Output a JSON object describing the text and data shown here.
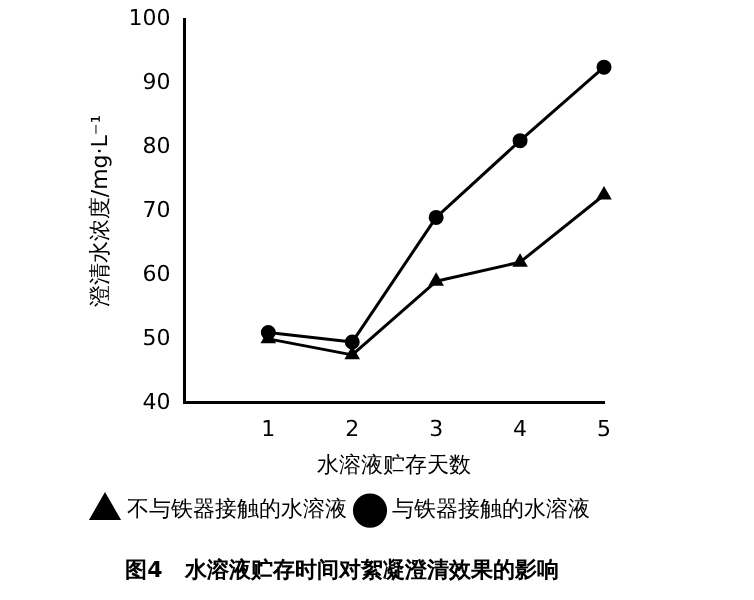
{
  "chart_data": {
    "type": "line",
    "title": "图4　水溶液贮存时间对絮凝澄清效果的影响",
    "xlabel": "水溶液贮存天数",
    "ylabel": "澄清水浓度/mg·L⁻¹",
    "x": [
      1,
      2,
      3,
      4,
      5
    ],
    "series": [
      {
        "name": "与铁器接触的水溶液",
        "color": "#000000",
        "marker": "circle",
        "values": [
          51,
          49.5,
          69,
          81,
          92.5
        ]
      },
      {
        "name": "不与铁器接触的水溶液",
        "color": "#000000",
        "marker": "triangle",
        "values": [
          50,
          47.5,
          59,
          62,
          72.5
        ]
      }
    ],
    "xlim": [
      0,
      5
    ],
    "xticks": [
      1,
      2,
      3,
      4,
      5
    ],
    "ylim": [
      40,
      100
    ],
    "yticks": [
      40,
      50,
      60,
      70,
      80,
      90,
      100
    ],
    "grid": false,
    "legend": "bottom",
    "line_style": "solid"
  }
}
